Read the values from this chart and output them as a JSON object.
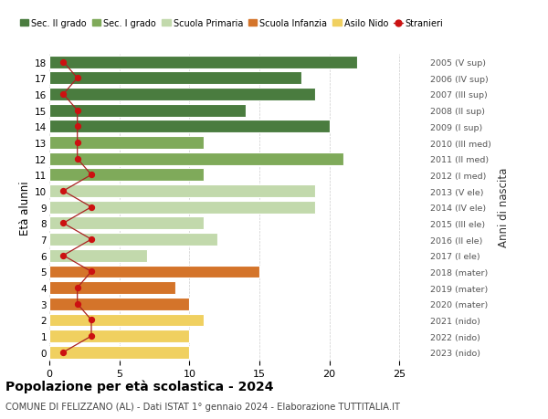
{
  "ages": [
    18,
    17,
    16,
    15,
    14,
    13,
    12,
    11,
    10,
    9,
    8,
    7,
    6,
    5,
    4,
    3,
    2,
    1,
    0
  ],
  "bar_values": [
    22,
    18,
    19,
    14,
    20,
    11,
    21,
    11,
    19,
    19,
    11,
    12,
    7,
    15,
    9,
    10,
    11,
    10,
    10
  ],
  "bar_colors": [
    "#4a7c3f",
    "#4a7c3f",
    "#4a7c3f",
    "#4a7c3f",
    "#4a7c3f",
    "#7faa5a",
    "#7faa5a",
    "#7faa5a",
    "#c2d9ac",
    "#c2d9ac",
    "#c2d9ac",
    "#c2d9ac",
    "#c2d9ac",
    "#d4742a",
    "#d4742a",
    "#d4742a",
    "#f0d060",
    "#f0d060",
    "#f0d060"
  ],
  "stranieri_values": [
    1,
    2,
    1,
    2,
    2,
    2,
    2,
    3,
    1,
    3,
    1,
    3,
    1,
    3,
    2,
    2,
    3,
    3,
    1
  ],
  "right_labels": [
    "2005 (V sup)",
    "2006 (IV sup)",
    "2007 (III sup)",
    "2008 (II sup)",
    "2009 (I sup)",
    "2010 (III med)",
    "2011 (II med)",
    "2012 (I med)",
    "2013 (V ele)",
    "2014 (IV ele)",
    "2015 (III ele)",
    "2016 (II ele)",
    "2017 (I ele)",
    "2018 (mater)",
    "2019 (mater)",
    "2020 (mater)",
    "2021 (nido)",
    "2022 (nido)",
    "2023 (nido)"
  ],
  "legend_labels": [
    "Sec. II grado",
    "Sec. I grado",
    "Scuola Primaria",
    "Scuola Infanzia",
    "Asilo Nido",
    "Stranieri"
  ],
  "legend_colors": [
    "#4a7c3f",
    "#7faa5a",
    "#c2d9ac",
    "#d4742a",
    "#f0d060",
    "#cc1111"
  ],
  "ylabel": "Età alunni",
  "right_ylabel": "Anni di nascita",
  "title": "Popolazione per età scolastica - 2024",
  "subtitle": "COMUNE DI FELIZZANO (AL) - Dati ISTAT 1° gennaio 2024 - Elaborazione TUTTITALIA.IT",
  "xlim": [
    0,
    27
  ],
  "stranieri_line_color": "#aa2222",
  "stranieri_dot_color": "#cc1111",
  "background_color": "#ffffff",
  "grid_color": "#cccccc"
}
